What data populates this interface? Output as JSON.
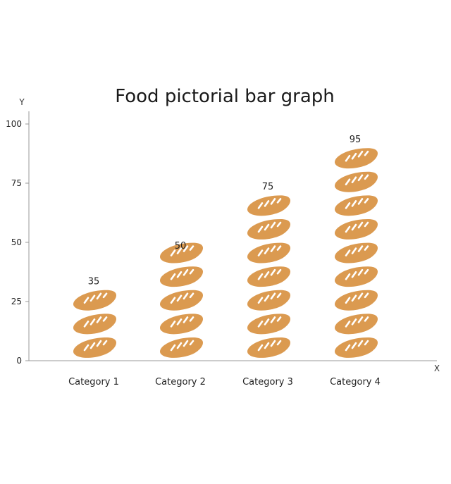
{
  "chart_data": {
    "type": "bar",
    "title": "Food pictorial bar graph",
    "xlabel": "X",
    "ylabel": "Y",
    "categories": [
      "Category 1",
      "Category 2",
      "Category 3",
      "Category 4"
    ],
    "values": [
      35,
      50,
      75,
      95
    ],
    "ylim": [
      0,
      100
    ],
    "yticks": [
      0,
      25,
      50,
      75,
      100
    ],
    "icon": "bread-loaf-icon",
    "units_per_icon": 10,
    "colors": {
      "icon": "#DB9A50",
      "axis": "#9A9A9A",
      "text": "#222222"
    },
    "grid": false
  }
}
